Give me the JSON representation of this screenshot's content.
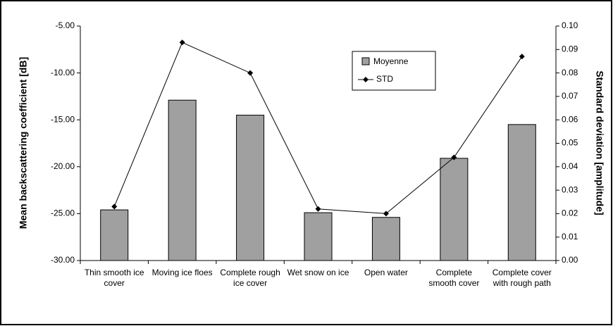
{
  "chart_data": {
    "type": "bar_line",
    "categories": [
      "Thin smooth ice cover",
      "Moving ice floes",
      "Complete rough ice cover",
      "Wet snow on ice",
      "Open water",
      "Complete smooth cover",
      "Complete cover with rough path"
    ],
    "series": [
      {
        "name": "Moyenne",
        "type": "bar",
        "color": "#a0a0a0",
        "values": [
          -24.6,
          -12.9,
          -14.5,
          -24.9,
          -25.4,
          -19.1,
          -15.5
        ]
      },
      {
        "name": "STD",
        "type": "line",
        "axis": "y2",
        "color": "#000000",
        "values": [
          0.023,
          0.093,
          0.08,
          0.022,
          0.02,
          0.044,
          0.087
        ]
      }
    ],
    "y_label": "Mean backscattering coefficient [dB]",
    "y2_label": "Standard deviation [amplitude]",
    "ylim": [
      -30,
      -5
    ],
    "yticks": [
      {
        "value": -30,
        "label": "-30.00"
      },
      {
        "value": -25,
        "label": "-25.00"
      },
      {
        "value": -20,
        "label": "-20.00"
      },
      {
        "value": -15,
        "label": "-15.00"
      },
      {
        "value": -10,
        "label": "-10.00"
      },
      {
        "value": -5,
        "label": "-5.00"
      }
    ],
    "y2lim": [
      0,
      0.1
    ],
    "y2ticks": [
      {
        "value": 0,
        "label": "0.00"
      },
      {
        "value": 0.01,
        "label": "0.01"
      },
      {
        "value": 0.02,
        "label": "0.02"
      },
      {
        "value": 0.03,
        "label": "0.03"
      },
      {
        "value": 0.04,
        "label": "0.04"
      },
      {
        "value": 0.05,
        "label": "0.05"
      },
      {
        "value": 0.06,
        "label": "0.06"
      },
      {
        "value": 0.07,
        "label": "0.07"
      },
      {
        "value": 0.08,
        "label": "0.08"
      },
      {
        "value": 0.09,
        "label": "0.09"
      },
      {
        "value": 0.1,
        "label": "0.10"
      }
    ],
    "legend": "top-right"
  }
}
